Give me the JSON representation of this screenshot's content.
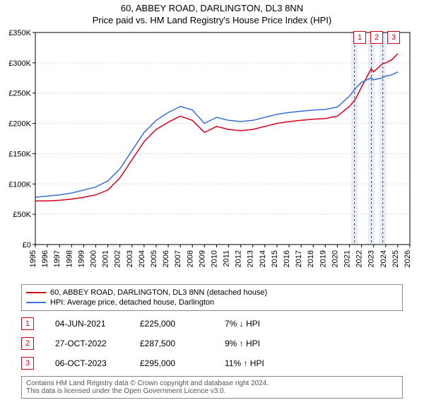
{
  "title_line1": "60, ABBEY ROAD, DARLINGTON, DL3 8NN",
  "title_line2": "Price paid vs. HM Land Registry's House Price Index (HPI)",
  "chart": {
    "type": "line",
    "background_color": "#ffffff",
    "plot_border_color": "#000000",
    "grid_color": "#bbbbbb",
    "x": {
      "min": 1995,
      "max": 2026,
      "ticks": [
        1995,
        1996,
        1997,
        1998,
        1999,
        2000,
        2001,
        2002,
        2003,
        2004,
        2005,
        2006,
        2007,
        2008,
        2009,
        2010,
        2011,
        2012,
        2013,
        2014,
        2015,
        2016,
        2017,
        2018,
        2019,
        2020,
        2021,
        2022,
        2023,
        2024,
        2025,
        2026
      ],
      "tick_fontsize": 11,
      "rotation": -90
    },
    "y": {
      "min": 0,
      "max": 350000,
      "ticks": [
        0,
        50000,
        100000,
        150000,
        200000,
        250000,
        300000,
        350000
      ],
      "tick_labels": [
        "£0",
        "£50K",
        "£100K",
        "£150K",
        "£200K",
        "£250K",
        "£300K",
        "£350K"
      ],
      "tick_fontsize": 11
    },
    "series": [
      {
        "name": "property",
        "label": "60, ABBEY ROAD, DARLINGTON, DL3 8NN (detached house)",
        "color": "#d4001a",
        "line_width": 1.5,
        "data": [
          [
            1995,
            72000
          ],
          [
            1996,
            72000
          ],
          [
            1997,
            73000
          ],
          [
            1998,
            75000
          ],
          [
            1999,
            78000
          ],
          [
            2000,
            82000
          ],
          [
            2001,
            90000
          ],
          [
            2002,
            110000
          ],
          [
            2003,
            140000
          ],
          [
            2004,
            170000
          ],
          [
            2005,
            190000
          ],
          [
            2006,
            202000
          ],
          [
            2007,
            212000
          ],
          [
            2008,
            205000
          ],
          [
            2009,
            185000
          ],
          [
            2010,
            195000
          ],
          [
            2011,
            190000
          ],
          [
            2012,
            188000
          ],
          [
            2013,
            190000
          ],
          [
            2014,
            195000
          ],
          [
            2015,
            200000
          ],
          [
            2016,
            203000
          ],
          [
            2017,
            205000
          ],
          [
            2018,
            207000
          ],
          [
            2019,
            208000
          ],
          [
            2020,
            212000
          ],
          [
            2021,
            228000
          ],
          [
            2021.5,
            240000
          ],
          [
            2022,
            260000
          ],
          [
            2022.8,
            290000
          ],
          [
            2023,
            285000
          ],
          [
            2023.7,
            298000
          ],
          [
            2024,
            300000
          ],
          [
            2024.5,
            305000
          ],
          [
            2025,
            315000
          ]
        ]
      },
      {
        "name": "hpi",
        "label": "HPI: Average price, detached house, Darlington",
        "color": "#3a6fd8",
        "line_width": 1.5,
        "data": [
          [
            1995,
            78000
          ],
          [
            1996,
            80000
          ],
          [
            1997,
            82000
          ],
          [
            1998,
            85000
          ],
          [
            1999,
            90000
          ],
          [
            2000,
            95000
          ],
          [
            2001,
            105000
          ],
          [
            2002,
            125000
          ],
          [
            2003,
            155000
          ],
          [
            2004,
            185000
          ],
          [
            2005,
            205000
          ],
          [
            2006,
            218000
          ],
          [
            2007,
            228000
          ],
          [
            2008,
            222000
          ],
          [
            2009,
            200000
          ],
          [
            2010,
            210000
          ],
          [
            2011,
            205000
          ],
          [
            2012,
            203000
          ],
          [
            2013,
            205000
          ],
          [
            2014,
            210000
          ],
          [
            2015,
            215000
          ],
          [
            2016,
            218000
          ],
          [
            2017,
            220000
          ],
          [
            2018,
            222000
          ],
          [
            2019,
            223000
          ],
          [
            2020,
            227000
          ],
          [
            2021,
            245000
          ],
          [
            2021.5,
            258000
          ],
          [
            2022,
            268000
          ],
          [
            2022.8,
            275000
          ],
          [
            2023,
            272000
          ],
          [
            2023.7,
            275000
          ],
          [
            2024,
            278000
          ],
          [
            2024.5,
            280000
          ],
          [
            2025,
            285000
          ]
        ]
      }
    ],
    "event_markers": [
      {
        "n": "1",
        "x": 2021.42,
        "color": "#d4001a",
        "shade_color": "#d6e4f5"
      },
      {
        "n": "2",
        "x": 2022.82,
        "color": "#d4001a",
        "shade_color": "#d6e4f5"
      },
      {
        "n": "3",
        "x": 2023.76,
        "color": "#d4001a",
        "shade_color": "#d6e4f5"
      }
    ],
    "shade_halfyear": 0.28
  },
  "legend": {
    "items": [
      {
        "color": "#d4001a",
        "label": "60, ABBEY ROAD, DARLINGTON, DL3 8NN (detached house)"
      },
      {
        "color": "#3a6fd8",
        "label": "HPI: Average price, detached house, Darlington"
      }
    ]
  },
  "events": [
    {
      "n": "1",
      "color": "#d4001a",
      "date": "04-JUN-2021",
      "price": "£225,000",
      "pct": "7% ↓ HPI"
    },
    {
      "n": "2",
      "color": "#d4001a",
      "date": "27-OCT-2022",
      "price": "£287,500",
      "pct": "9% ↑ HPI"
    },
    {
      "n": "3",
      "color": "#d4001a",
      "date": "06-OCT-2023",
      "price": "£295,000",
      "pct": "11% ↑ HPI"
    }
  ],
  "footnote_line1": "Contains HM Land Registry data © Crown copyright and database right 2024.",
  "footnote_line2": "This data is licensed under the Open Government Licence v3.0."
}
